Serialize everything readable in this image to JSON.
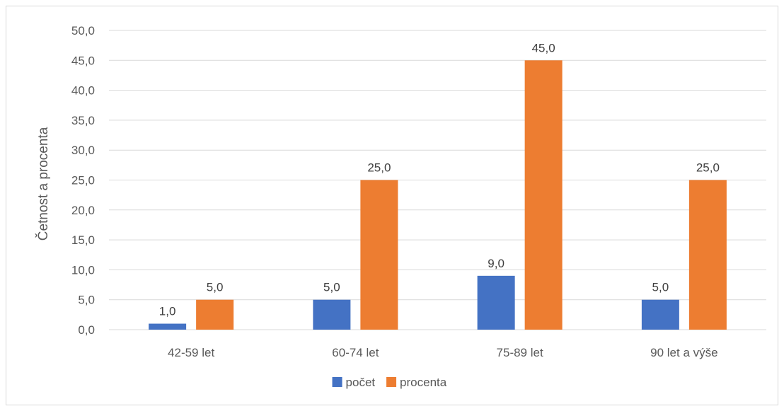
{
  "chart_data": {
    "type": "bar",
    "title": "",
    "xlabel": "",
    "ylabel": "Četnost a procenta",
    "categories": [
      "42-59 let",
      "60-74 let",
      "75-89 let",
      "90 let a výše"
    ],
    "series": [
      {
        "name": "počet",
        "values": [
          1.0,
          5.0,
          9.0,
          5.0
        ],
        "color": "#4472c4"
      },
      {
        "name": "procenta",
        "values": [
          5.0,
          25.0,
          45.0,
          25.0
        ],
        "color": "#ed7d31"
      }
    ],
    "ylim": [
      0,
      50
    ],
    "yticks": [
      "0,0",
      "5,0",
      "10,0",
      "15,0",
      "20,0",
      "25,0",
      "30,0",
      "35,0",
      "40,0",
      "45,0",
      "50,0"
    ],
    "data_labels": [
      [
        "1,0",
        "5,0",
        "9,0",
        "5,0"
      ],
      [
        "5,0",
        "25,0",
        "45,0",
        "25,0"
      ]
    ],
    "grid": true,
    "gridline_color": "#d9d9d9",
    "legend_position": "bottom"
  }
}
